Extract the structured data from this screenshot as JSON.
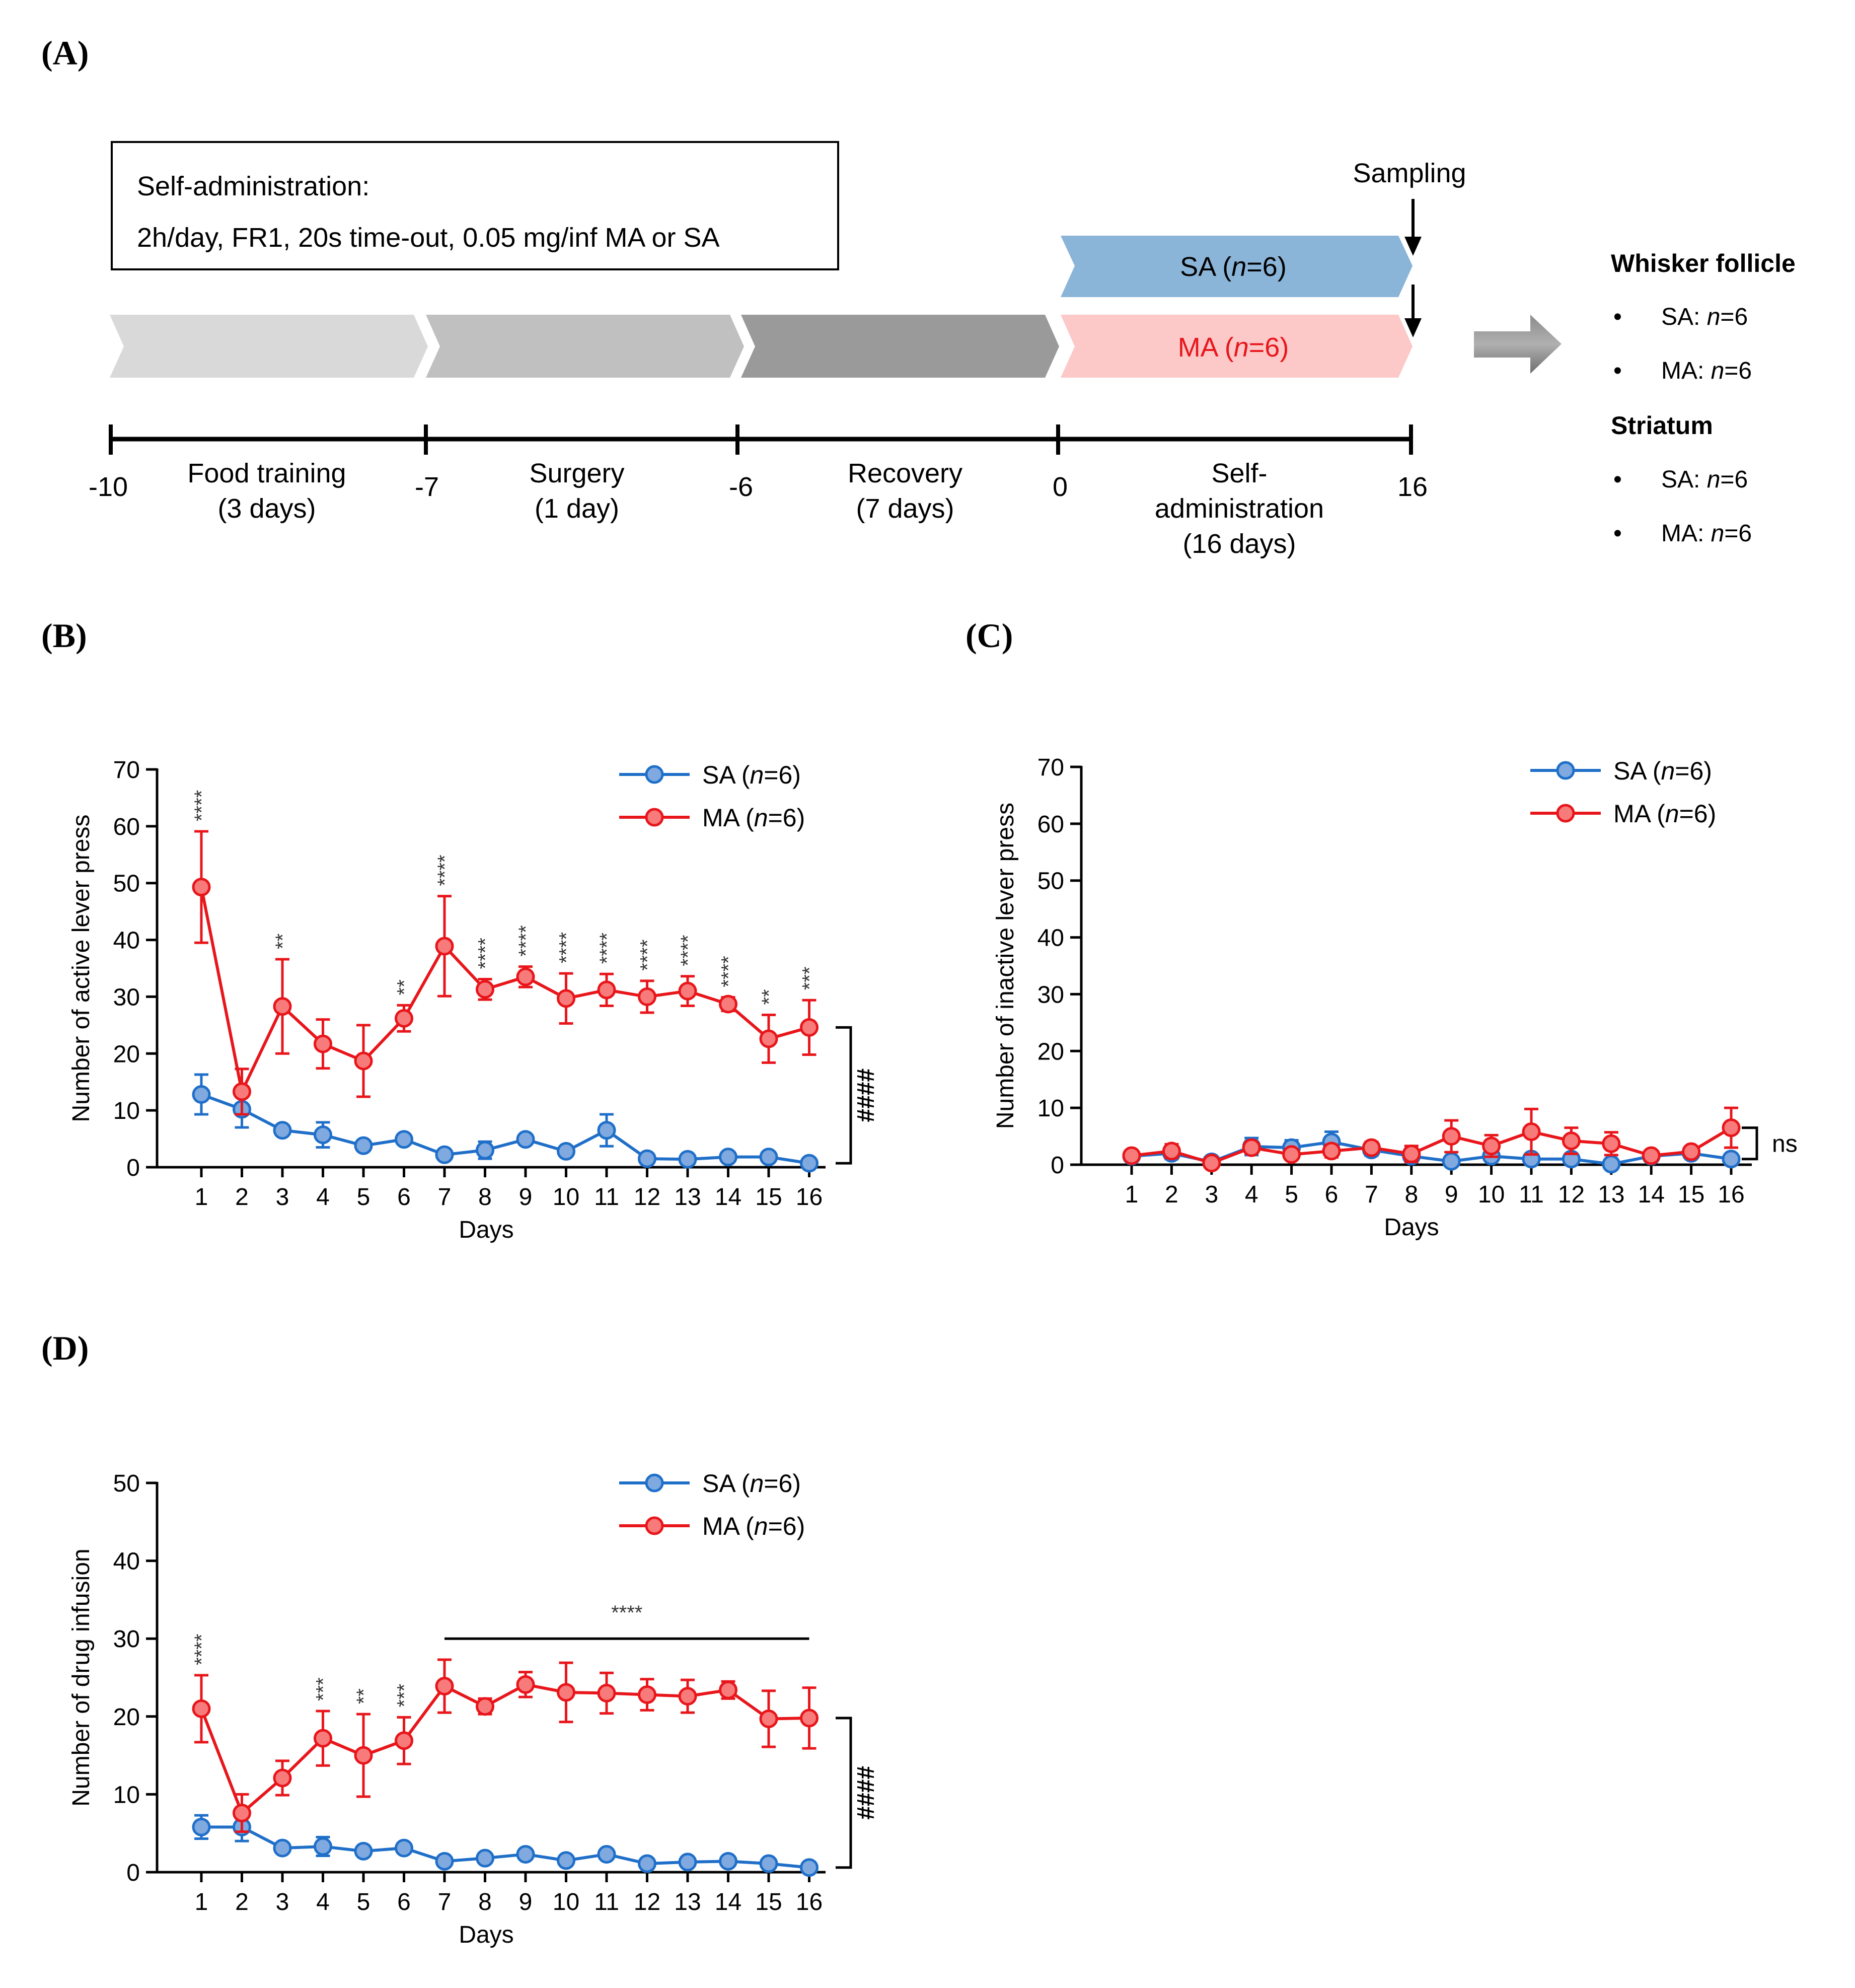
{
  "panel_a": {
    "label": "(A)",
    "box_line1": "Self-administration:",
    "box_line2": "2h/day, FR1, 20s time-out, 0.05 mg/inf MA or SA",
    "sampling": "Sampling",
    "sa_arrow_prefix": "SA (",
    "ma_arrow_prefix": "MA (",
    "arrow_n": "n",
    "arrow_suffix": "=6)",
    "colors": {
      "sa_arrow": "#8ab4d8",
      "ma_arrow": "#fcc8c8",
      "phase1": "#d9d9d9",
      "phase2": "#c0c0c0",
      "phase3": "#9a9a9a"
    },
    "timeline": {
      "ticks": [
        "-10",
        "-7",
        "-6",
        "0",
        "16"
      ],
      "phases": [
        {
          "l1": "Food training",
          "l2": "(3 days)",
          "l3": ""
        },
        {
          "l1": "Surgery",
          "l2": "(1 day)",
          "l3": ""
        },
        {
          "l1": "Recovery",
          "l2": "(7 days)",
          "l3": ""
        },
        {
          "l1": "Self-",
          "l2": "administration",
          "l3": "(16 days)"
        }
      ]
    },
    "sampling_groups": [
      {
        "title": "Whisker follicle",
        "items": [
          {
            "prefix": "SA: ",
            "n": "n",
            "suffix": "=6"
          },
          {
            "prefix": "MA: ",
            "n": "n",
            "suffix": "=6"
          }
        ]
      },
      {
        "title": "Striatum",
        "items": [
          {
            "prefix": "SA: ",
            "n": "n",
            "suffix": "=6"
          },
          {
            "prefix": "MA: ",
            "n": "n",
            "suffix": "=6"
          }
        ]
      }
    ],
    "bullet": "•"
  },
  "chart_data": [
    {
      "id": "B",
      "label": "(B)",
      "type": "line",
      "xlabel": "Days",
      "ylabel": "Number of active lever press",
      "ylim": [
        0,
        70
      ],
      "yticks": [
        "0",
        "10",
        "20",
        "30",
        "40",
        "50",
        "60",
        "70"
      ],
      "categories": [
        "1",
        "2",
        "3",
        "4",
        "5",
        "6",
        "7",
        "8",
        "9",
        "10",
        "11",
        "12",
        "13",
        "14",
        "15",
        "16"
      ],
      "series": [
        {
          "name": "SA",
          "color": "#1f6fc9",
          "fill": "#7fa9df",
          "values": [
            12.8,
            10.2,
            6.5,
            5.7,
            3.8,
            4.9,
            2.2,
            3.0,
            4.9,
            2.8,
            6.5,
            1.5,
            1.4,
            1.8,
            1.8,
            0.7
          ],
          "err": [
            3.5,
            3.2,
            0.8,
            2.2,
            0.6,
            0.6,
            0.5,
            1.5,
            0.8,
            0.6,
            2.8,
            0.4,
            0.4,
            0.5,
            0.5,
            0.4
          ]
        },
        {
          "name": "MA",
          "color": "#e8161b",
          "fill": "#f77b7b",
          "values": [
            49.3,
            13.3,
            28.3,
            21.7,
            18.7,
            26.2,
            38.9,
            31.3,
            33.5,
            29.7,
            31.2,
            30.0,
            31.0,
            28.7,
            22.6,
            24.6
          ],
          "err": [
            9.8,
            4.0,
            8.3,
            4.3,
            6.3,
            2.3,
            8.8,
            1.8,
            1.8,
            4.4,
            2.8,
            2.8,
            2.6,
            1.2,
            4.2,
            4.8
          ]
        }
      ],
      "legend_prefixes": [
        "SA (",
        "MA ("
      ],
      "legend_n": "n",
      "legend_suffix": "=6)",
      "stars": [
        "****",
        "",
        "**",
        "",
        "",
        "**",
        "****",
        "****",
        "****",
        "****",
        "****",
        "****",
        "****",
        "****",
        "**",
        "***"
      ],
      "bracket_label": "####"
    },
    {
      "id": "C",
      "label": "(C)",
      "type": "line",
      "xlabel": "Days",
      "ylabel": "Number of inactive lever press",
      "ylim": [
        0,
        70
      ],
      "yticks": [
        "0",
        "10",
        "20",
        "30",
        "40",
        "50",
        "60",
        "70"
      ],
      "categories": [
        "1",
        "2",
        "3",
        "4",
        "5",
        "6",
        "7",
        "8",
        "9",
        "10",
        "11",
        "12",
        "13",
        "14",
        "15",
        "16"
      ],
      "series": [
        {
          "name": "SA",
          "color": "#1f6fc9",
          "fill": "#7fa9df",
          "values": [
            1.5,
            2.0,
            0.5,
            3.2,
            3.0,
            4.0,
            2.6,
            1.5,
            0.6,
            1.5,
            1.0,
            1.0,
            0.1,
            1.5,
            2.0,
            1.0
          ],
          "err": [
            0.5,
            1.0,
            0.3,
            1.5,
            1.3,
            1.8,
            1.0,
            0.6,
            0.4,
            0.8,
            0.6,
            0.5,
            0.1,
            0.7,
            0.8,
            0.6
          ]
        },
        {
          "name": "MA",
          "color": "#e8161b",
          "fill": "#f77b7b",
          "values": [
            1.6,
            2.4,
            0.3,
            3.0,
            1.8,
            2.4,
            3.0,
            1.9,
            5.0,
            3.3,
            5.8,
            4.2,
            3.7,
            1.6,
            2.3,
            6.5
          ],
          "err": [
            0.6,
            1.2,
            0.2,
            1.0,
            0.8,
            1.1,
            1.0,
            1.4,
            2.8,
            1.9,
            4.0,
            2.3,
            2.0,
            0.6,
            0.8,
            3.5
          ]
        }
      ],
      "legend_prefixes": [
        "SA (",
        "MA ("
      ],
      "legend_n": "n",
      "legend_suffix": "=6)",
      "bracket_label": "ns"
    },
    {
      "id": "D",
      "label": "(D)",
      "type": "line",
      "xlabel": "Days",
      "ylabel": "Number of drug infusion",
      "ylim": [
        0,
        50
      ],
      "yticks": [
        "0",
        "10",
        "20",
        "30",
        "40",
        "50"
      ],
      "categories": [
        "1",
        "2",
        "3",
        "4",
        "5",
        "6",
        "7",
        "8",
        "9",
        "10",
        "11",
        "12",
        "13",
        "14",
        "15",
        "16"
      ],
      "series": [
        {
          "name": "SA",
          "color": "#1f6fc9",
          "fill": "#7fa9df",
          "values": [
            5.8,
            5.8,
            3.1,
            3.3,
            2.7,
            3.1,
            1.4,
            1.8,
            2.3,
            1.5,
            2.3,
            1.1,
            1.3,
            1.4,
            1.1,
            0.6
          ],
          "err": [
            1.5,
            1.8,
            0.5,
            1.2,
            0.5,
            0.5,
            0.4,
            0.5,
            0.5,
            0.5,
            0.5,
            0.4,
            0.4,
            0.4,
            0.4,
            0.3
          ]
        },
        {
          "name": "MA",
          "color": "#e8161b",
          "fill": "#f77b7b",
          "values": [
            21.0,
            7.6,
            12.1,
            17.2,
            15.0,
            16.9,
            23.9,
            21.3,
            24.1,
            23.1,
            23.0,
            22.8,
            22.6,
            23.4,
            19.7,
            19.8
          ],
          "err": [
            4.3,
            2.4,
            2.2,
            3.5,
            5.3,
            3.0,
            3.4,
            1.0,
            1.6,
            3.8,
            2.6,
            2.0,
            2.1,
            1.1,
            3.6,
            3.9
          ]
        }
      ],
      "legend_prefixes": [
        "SA (",
        "MA ("
      ],
      "legend_n": "n",
      "legend_suffix": "=6)",
      "stars": [
        "****",
        "",
        "",
        "***",
        "**",
        "***",
        "",
        "",
        "",
        "",
        "",
        "",
        "",
        "",
        "",
        ""
      ],
      "range_star": "****",
      "bracket_label": "####"
    }
  ]
}
